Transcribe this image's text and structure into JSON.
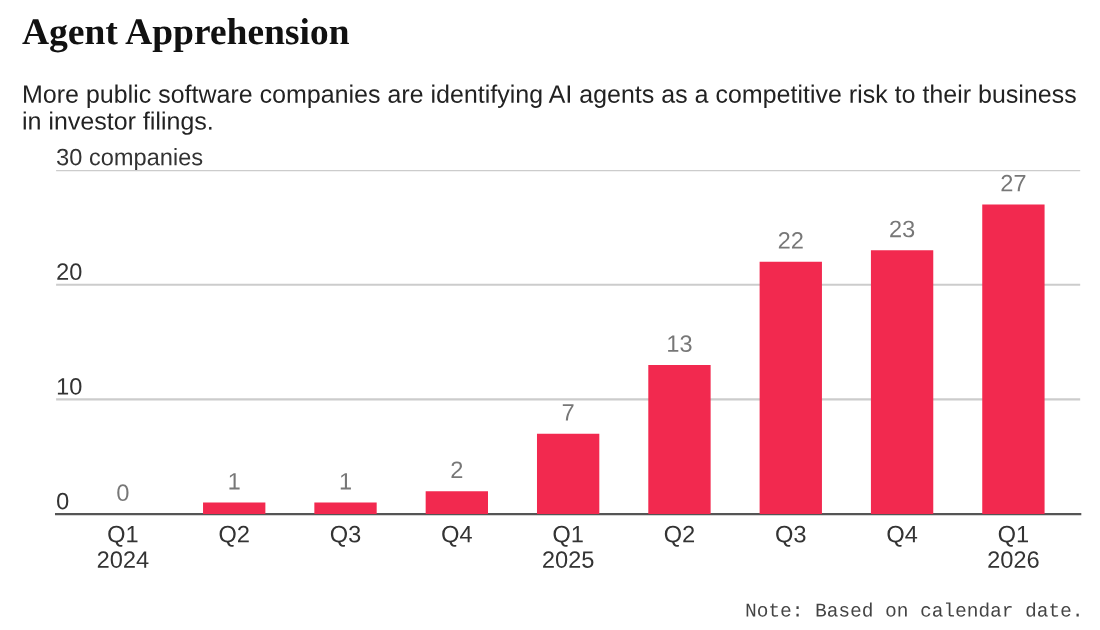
{
  "chart_data": {
    "type": "bar",
    "title": "Agent Apprehension",
    "subtitle": "More public software companies are identifying AI agents as a competitive risk to their business in investor filings.",
    "categories": [
      "Q1\n2024",
      "Q2",
      "Q3",
      "Q4",
      "Q1\n2025",
      "Q2",
      "Q3",
      "Q4",
      "Q1\n2026"
    ],
    "values": [
      0,
      1,
      1,
      2,
      7,
      13,
      22,
      23,
      27
    ],
    "color": "#f2294f",
    "data_labels": true,
    "ylim": [
      0,
      30
    ],
    "yticks": [
      0,
      10,
      20,
      {
        "value": 30,
        "label": "30 companies"
      }
    ],
    "grid": "y",
    "annotations": [
      "Note: Based on calendar date."
    ]
  }
}
